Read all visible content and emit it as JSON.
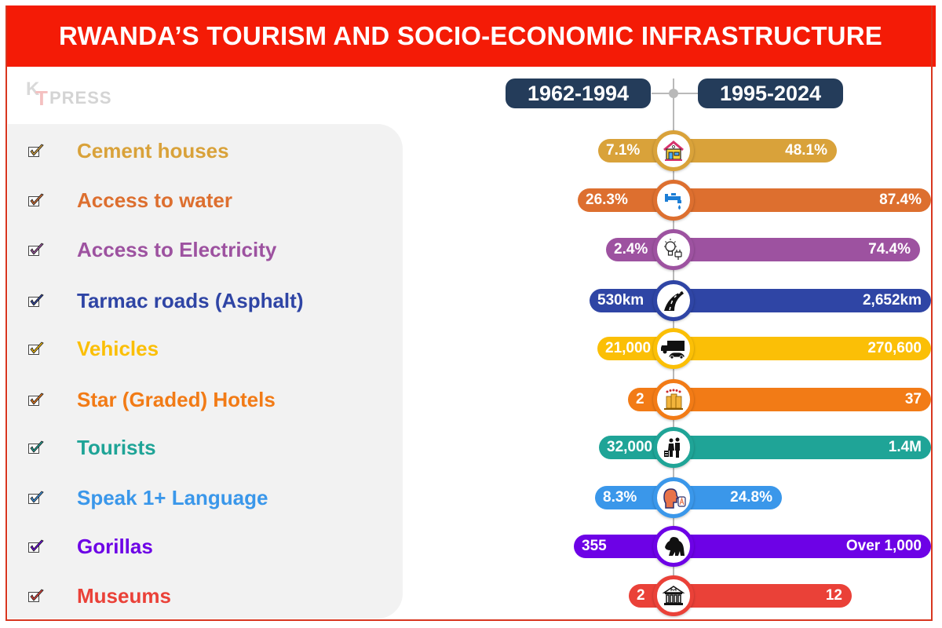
{
  "header": {
    "title": "RWANDA’S TOURISM AND SOCIO-ECONOMIC INFRASTRUCTURE"
  },
  "logo": {
    "k": "K",
    "t": "T",
    "press": "PRESS"
  },
  "periods": {
    "before": "1962-1994",
    "after": "1995-2024"
  },
  "chart_data": {
    "type": "table",
    "title": "RWANDA’S TOURISM AND SOCIO-ECONOMIC INFRASTRUCTURE",
    "columns": [
      "1962-1994",
      "1995-2024"
    ],
    "rows": [
      {
        "label": "Cement houses",
        "before": "7.1%",
        "after": "48.1%",
        "color": "#d9a23a",
        "icon": "house-icon"
      },
      {
        "label": "Access to water",
        "before": "26.3%",
        "after": "87.4%",
        "color": "#dd6f2f",
        "icon": "water-tap-icon"
      },
      {
        "label": "Access to Electricity",
        "before": "2.4%",
        "after": "74.4%",
        "color": "#9d52a0",
        "icon": "lightbulb-plug-icon"
      },
      {
        "label": "Tarmac roads (Asphalt)",
        "before": "530km",
        "after": "2,652km",
        "color": "#2f45a5",
        "icon": "road-icon"
      },
      {
        "label": "Vehicles",
        "before": "21,000",
        "after": "270,600",
        "color": "#fbbf06",
        "icon": "truck-car-icon"
      },
      {
        "label": "Star (Graded) Hotels",
        "before": "2",
        "after": "37",
        "color": "#f27b16",
        "icon": "hotel-icon"
      },
      {
        "label": "Tourists",
        "before": "32,000",
        "after": "1.4M",
        "color": "#1fa497",
        "icon": "tourists-icon"
      },
      {
        "label": "Speak 1+ Language",
        "before": "8.3%",
        "after": "24.8%",
        "color": "#3a97ea",
        "icon": "speaking-head-icon"
      },
      {
        "label": "Gorillas",
        "before": "355",
        "after": "Over 1,000",
        "color": "#6d02e6",
        "icon": "gorilla-icon"
      },
      {
        "label": "Museums",
        "before": "2",
        "after": "12",
        "color": "#ea4138",
        "icon": "museum-icon"
      }
    ]
  }
}
